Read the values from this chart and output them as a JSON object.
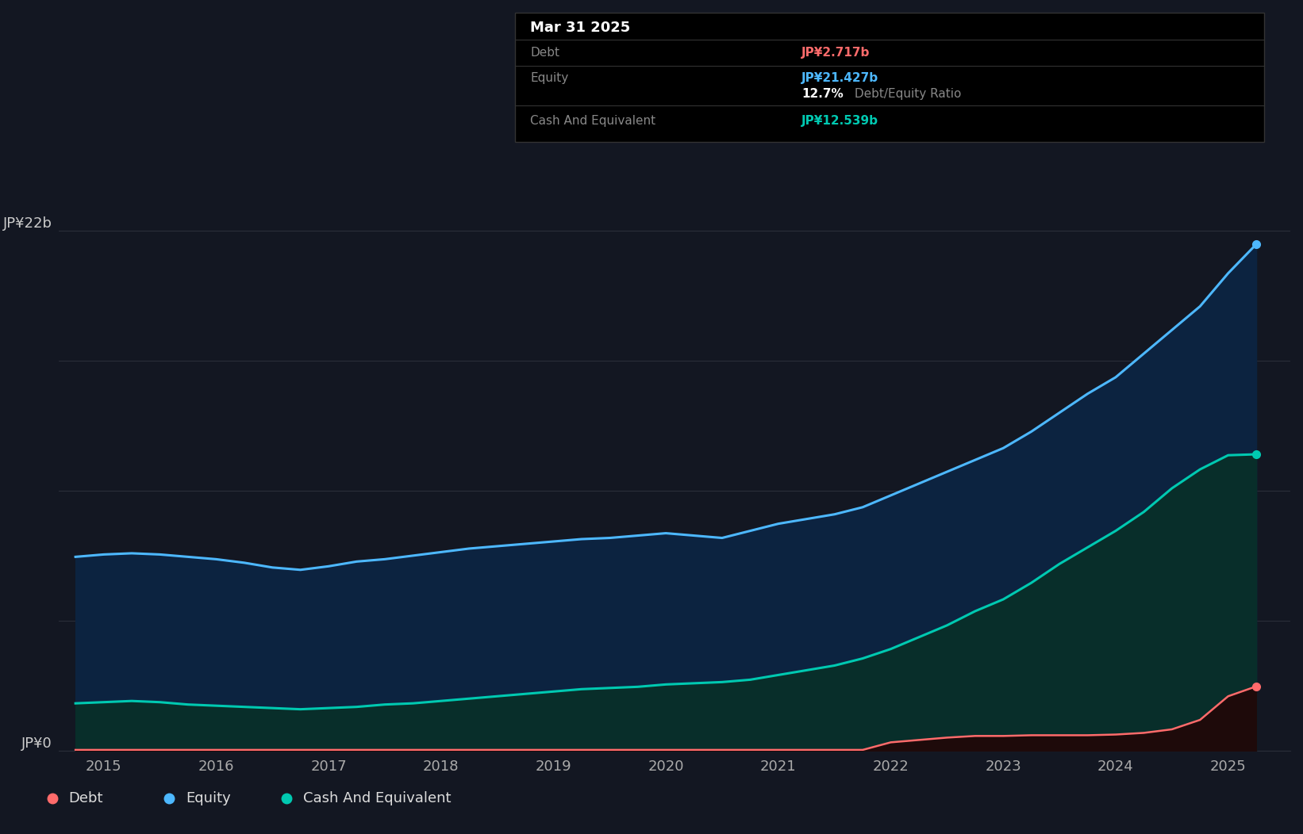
{
  "background_color": "#131722",
  "plot_bg_color": "#131722",
  "grid_color": "#2a2e39",
  "ylabel_top": "JP¥22b",
  "ylabel_zero": "JP¥0",
  "ylim": [
    0,
    24.0
  ],
  "y_display_max": 22,
  "xlim_start": 2014.6,
  "xlim_end": 2025.55,
  "xtick_labels": [
    "2015",
    "2016",
    "2017",
    "2018",
    "2019",
    "2020",
    "2021",
    "2022",
    "2023",
    "2024",
    "2025"
  ],
  "xtick_values": [
    2015,
    2016,
    2017,
    2018,
    2019,
    2020,
    2021,
    2022,
    2023,
    2024,
    2025
  ],
  "equity_color": "#4db8ff",
  "cash_color": "#00c9b1",
  "debt_color": "#ff6b6b",
  "tooltip_title": "Mar 31 2025",
  "tooltip_debt_val": "JP¥2.717b",
  "tooltip_equity_val": "JP¥21.427b",
  "tooltip_ratio_pct": "12.7%",
  "tooltip_ratio_text": " Debt/Equity Ratio",
  "tooltip_cash_label": "Cash And Equivalent",
  "tooltip_cash_val": "JP¥12.539b",
  "equity_x": [
    2014.75,
    2015.0,
    2015.25,
    2015.5,
    2015.75,
    2016.0,
    2016.25,
    2016.5,
    2016.75,
    2017.0,
    2017.25,
    2017.5,
    2017.75,
    2018.0,
    2018.25,
    2018.5,
    2018.75,
    2019.0,
    2019.25,
    2019.5,
    2019.75,
    2020.0,
    2020.25,
    2020.5,
    2020.75,
    2021.0,
    2021.25,
    2021.5,
    2021.75,
    2022.0,
    2022.25,
    2022.5,
    2022.75,
    2023.0,
    2023.25,
    2023.5,
    2023.75,
    2024.0,
    2024.25,
    2024.5,
    2024.75,
    2025.0,
    2025.25
  ],
  "equity_y": [
    8.2,
    8.3,
    8.35,
    8.3,
    8.2,
    8.1,
    7.95,
    7.75,
    7.65,
    7.8,
    8.0,
    8.1,
    8.25,
    8.4,
    8.55,
    8.65,
    8.75,
    8.85,
    8.95,
    9.0,
    9.1,
    9.2,
    9.1,
    9.0,
    9.3,
    9.6,
    9.8,
    10.0,
    10.3,
    10.8,
    11.3,
    11.8,
    12.3,
    12.8,
    13.5,
    14.3,
    15.1,
    15.8,
    16.8,
    17.8,
    18.8,
    20.2,
    21.427
  ],
  "cash_x": [
    2014.75,
    2015.0,
    2015.25,
    2015.5,
    2015.75,
    2016.0,
    2016.25,
    2016.5,
    2016.75,
    2017.0,
    2017.25,
    2017.5,
    2017.75,
    2018.0,
    2018.25,
    2018.5,
    2018.75,
    2019.0,
    2019.25,
    2019.5,
    2019.75,
    2020.0,
    2020.25,
    2020.5,
    2020.75,
    2021.0,
    2021.25,
    2021.5,
    2021.75,
    2022.0,
    2022.25,
    2022.5,
    2022.75,
    2023.0,
    2023.25,
    2023.5,
    2023.75,
    2024.0,
    2024.25,
    2024.5,
    2024.75,
    2025.0,
    2025.25
  ],
  "cash_y": [
    2.0,
    2.05,
    2.1,
    2.05,
    1.95,
    1.9,
    1.85,
    1.8,
    1.75,
    1.8,
    1.85,
    1.95,
    2.0,
    2.1,
    2.2,
    2.3,
    2.4,
    2.5,
    2.6,
    2.65,
    2.7,
    2.8,
    2.85,
    2.9,
    3.0,
    3.2,
    3.4,
    3.6,
    3.9,
    4.3,
    4.8,
    5.3,
    5.9,
    6.4,
    7.1,
    7.9,
    8.6,
    9.3,
    10.1,
    11.1,
    11.9,
    12.5,
    12.539
  ],
  "debt_x": [
    2014.75,
    2015.0,
    2015.25,
    2015.5,
    2015.75,
    2016.0,
    2016.25,
    2016.5,
    2016.75,
    2017.0,
    2017.25,
    2017.5,
    2017.75,
    2018.0,
    2018.25,
    2018.5,
    2018.75,
    2019.0,
    2019.25,
    2019.5,
    2019.75,
    2020.0,
    2020.25,
    2020.5,
    2020.75,
    2021.0,
    2021.25,
    2021.5,
    2021.75,
    2022.0,
    2022.25,
    2022.5,
    2022.75,
    2023.0,
    2023.25,
    2023.5,
    2023.75,
    2024.0,
    2024.25,
    2024.5,
    2024.75,
    2025.0,
    2025.25
  ],
  "debt_y": [
    0.03,
    0.03,
    0.03,
    0.03,
    0.03,
    0.03,
    0.03,
    0.03,
    0.03,
    0.03,
    0.03,
    0.03,
    0.03,
    0.03,
    0.03,
    0.03,
    0.03,
    0.03,
    0.03,
    0.03,
    0.03,
    0.03,
    0.03,
    0.03,
    0.03,
    0.03,
    0.03,
    0.03,
    0.03,
    0.35,
    0.45,
    0.55,
    0.62,
    0.62,
    0.65,
    0.65,
    0.65,
    0.68,
    0.75,
    0.9,
    1.3,
    2.3,
    2.717
  ],
  "legend_items": [
    {
      "label": "Debt",
      "color": "#ff6b6b"
    },
    {
      "label": "Equity",
      "color": "#4db8ff"
    },
    {
      "label": "Cash And Equivalent",
      "color": "#00c9b1"
    }
  ],
  "grid_y_positions": [
    0,
    5.5,
    11.0,
    16.5,
    22.0
  ]
}
